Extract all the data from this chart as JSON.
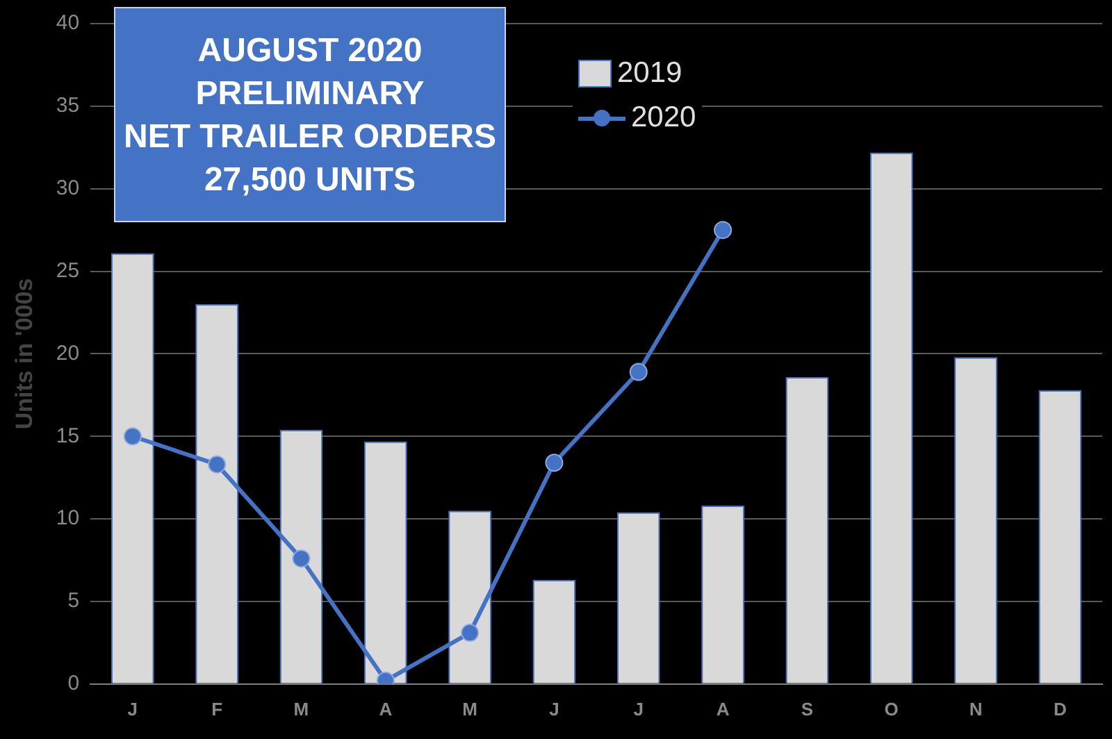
{
  "chart_data": {
    "type": "bar",
    "title": "AUGUST 2020\nPRELIMINARY\nNET TRAILER ORDERS\n27,500 UNITS",
    "ylabel": "Units in '000s",
    "categories": [
      "J",
      "F",
      "M",
      "A",
      "M",
      "J",
      "J",
      "A",
      "S",
      "O",
      "N",
      "D"
    ],
    "series": [
      {
        "name": "2019",
        "color": "#d9d9d9",
        "values": [
          26.1,
          23.0,
          15.4,
          14.7,
          10.5,
          6.3,
          10.4,
          10.8,
          18.6,
          32.2,
          19.8,
          17.8
        ]
      },
      {
        "name": "2020",
        "type": "line",
        "color": "#4472c4",
        "values": [
          15.0,
          13.3,
          7.6,
          0.2,
          3.1,
          13.4,
          18.9,
          27.5,
          null,
          null,
          null,
          null
        ]
      }
    ],
    "ylim": [
      0,
      40
    ],
    "yticks": [
      0,
      5,
      10,
      15,
      20,
      25,
      30,
      35,
      40
    ],
    "grid": "y",
    "legend": "top",
    "marker": "circle",
    "line_style": "solid"
  }
}
